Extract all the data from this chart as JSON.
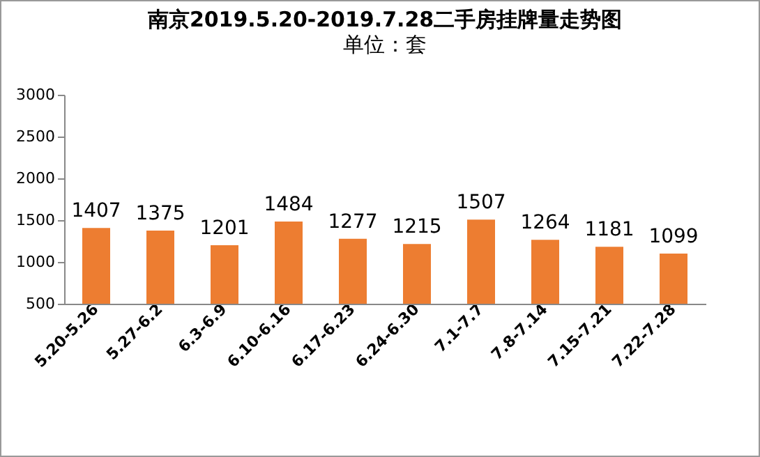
{
  "chart_data": {
    "type": "bar",
    "title": "南京2019.5.20-2019.7.28二手房挂牌量走势图",
    "subtitle": "单位：套",
    "categories": [
      "5.20-5.26",
      "5.27-6.2",
      "6.3-6.9",
      "6.10-6.16",
      "6.17-6.23",
      "6.24-6.30",
      "7.1-7.7",
      "7.8-7.14",
      "7.15-7.21",
      "7.22-7.28"
    ],
    "values": [
      1407,
      1375,
      1201,
      1484,
      1277,
      1215,
      1507,
      1264,
      1181,
      1099
    ],
    "color": "#ed7d31",
    "ylim": [
      500,
      3000
    ],
    "yticks": [
      500,
      1000,
      1500,
      2000,
      2500,
      3000
    ],
    "data_labels": true
  }
}
